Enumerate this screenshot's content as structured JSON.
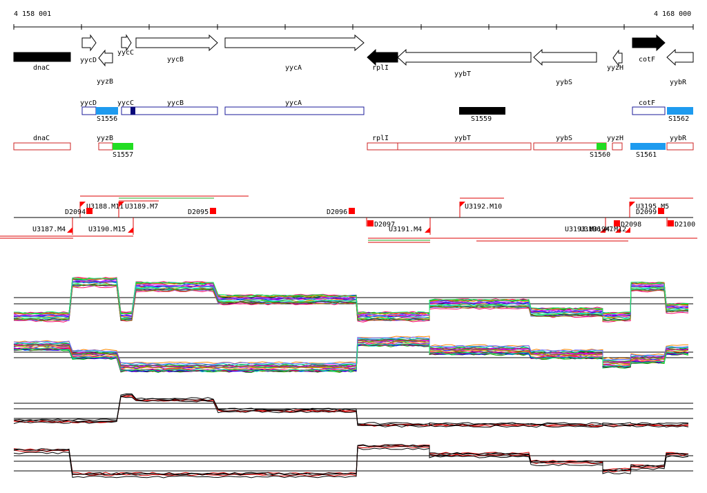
{
  "ruler": {
    "start_label": "4 158 001",
    "end_label": "4 168 000",
    "start": 4158001,
    "end": 4168000
  },
  "colors": {
    "gene_outline": "#000000",
    "gene_fill_solid": "#000000",
    "annotated_outline": "#1a1a99",
    "reference_outline": "#cc2222",
    "segment_light_blue": "#1e9bef",
    "segment_dark_blue": "#0a0a7a",
    "segment_green": "#22dd22",
    "segment_black": "#000000",
    "marker_red": "#ff0000",
    "profile_black": "#000000",
    "profile_red": "#dd0000"
  },
  "genes_top": [
    {
      "name": "dnaC",
      "strand": "+",
      "solid": true
    },
    {
      "name": "yycD",
      "strand": "+",
      "solid": false
    },
    {
      "name": "yyzB",
      "strand": "-",
      "solid": false
    },
    {
      "name": "yycC",
      "strand": "+",
      "solid": false
    },
    {
      "name": "yycB",
      "strand": "+",
      "solid": false
    },
    {
      "name": "yycA",
      "strand": "+",
      "solid": false
    },
    {
      "name": "rplI",
      "strand": "-",
      "solid": true
    },
    {
      "name": "yybT",
      "strand": "-",
      "solid": false
    },
    {
      "name": "yybS",
      "strand": "-",
      "solid": false
    },
    {
      "name": "yyzH",
      "strand": "-",
      "solid": false
    },
    {
      "name": "cotF",
      "strand": "+",
      "solid": true
    },
    {
      "name": "yybR",
      "strand": "-",
      "solid": false
    }
  ],
  "annotated_genes": [
    "yycD",
    "yycC",
    "yycB",
    "yycA",
    "cotF"
  ],
  "reference_genes": [
    "dnaC",
    "yyzB",
    "rplI",
    "yybT",
    "yybS",
    "yyzH",
    "yybR"
  ],
  "segments": [
    {
      "label": "S1556",
      "color_key": "segment_light_blue"
    },
    {
      "label": "S1559",
      "color_key": "segment_black"
    },
    {
      "label": "S1562",
      "color_key": "segment_light_blue"
    },
    {
      "label": "S1557",
      "color_key": "segment_green"
    },
    {
      "label": "S1560",
      "color_key": "segment_green"
    },
    {
      "label": "S1561",
      "color_key": "segment_light_blue"
    }
  ],
  "features_upper": [
    "U3188.M11",
    "U3189.M7",
    "U3192.M10",
    "U3195.M5"
  ],
  "features_lower": [
    "U3187.M4",
    "U3190.M15",
    "U3191.M4",
    "U3193.M",
    "U3196.M7",
    "U3194.M12"
  ],
  "downstream_marks": [
    "D2094",
    "D2095",
    "D2096",
    "D2097",
    "D2099",
    "D2098",
    "D2100"
  ],
  "profile_levels": {
    "bins": [
      "dnaC",
      "yycD",
      "yycC",
      "yycB",
      "yycA",
      "rplI",
      "yybT",
      "yybS",
      "yyzH",
      "cotF",
      "yybR"
    ],
    "panel1_plus_strand": [
      0.1,
      0.9,
      0.1,
      0.8,
      0.5,
      0.1,
      0.4,
      0.2,
      0.1,
      0.8,
      0.3
    ],
    "panel2_minus_strand": [
      0.6,
      0.4,
      0.1,
      0.1,
      0.1,
      0.7,
      0.5,
      0.4,
      0.2,
      0.3,
      0.5
    ],
    "panel3_plus_strand": [
      0.2,
      0.2,
      0.9,
      0.8,
      0.5,
      0.1,
      0.1,
      0.1,
      0.1,
      0.1,
      0.1
    ],
    "panel4_minus_strand": [
      0.7,
      0.1,
      0.1,
      0.1,
      0.1,
      0.8,
      0.6,
      0.4,
      0.2,
      0.3,
      0.6
    ]
  }
}
